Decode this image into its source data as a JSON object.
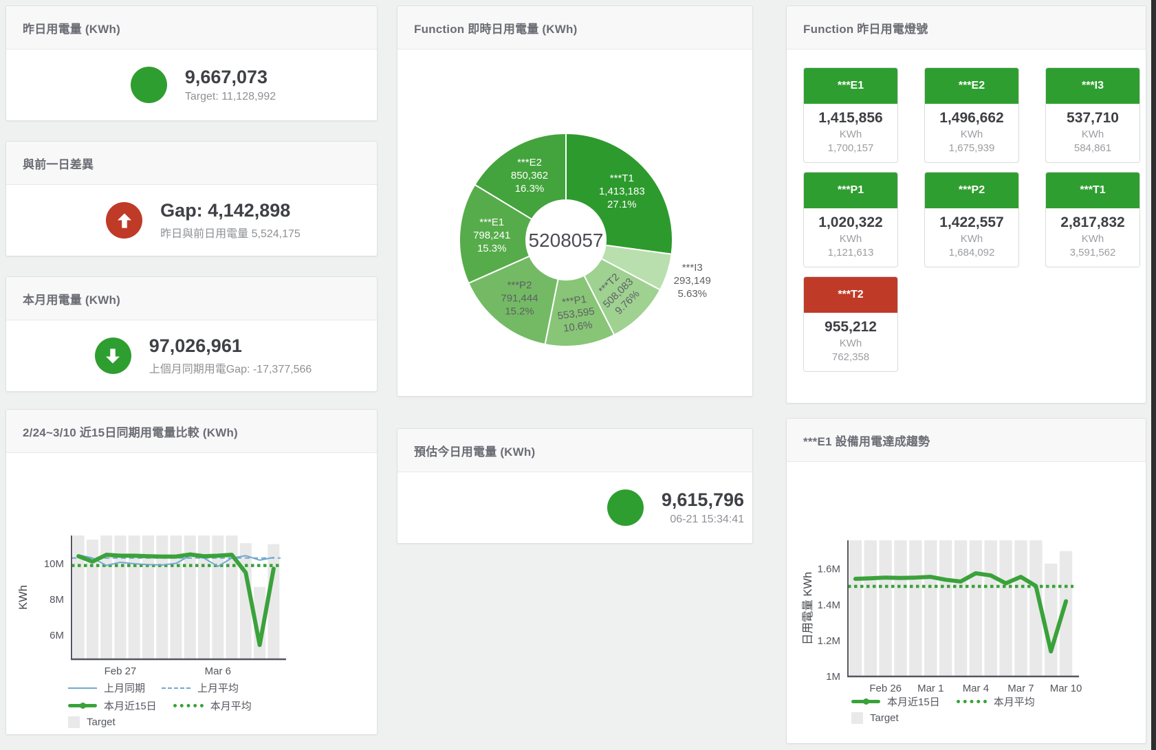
{
  "colors": {
    "green": "#2f9e30",
    "red": "#c03a28",
    "line_green": "#3aa23a",
    "line_blue": "#6fa8cf",
    "bar_gray": "#e9e9e9"
  },
  "cards": {
    "yesterday": {
      "title": "昨日用電量 (KWh)",
      "value": "9,667,073",
      "subtitle": "Target: 11,128,992"
    },
    "day_gap": {
      "title": "與前一日差異",
      "value": "Gap: 4,142,898",
      "subtitle": "昨日與前日用電量 5,524,175"
    },
    "month": {
      "title": "本月用電量 (KWh)",
      "value": "97,026,961",
      "subtitle": "上個月同期用電Gap: -17,377,566"
    },
    "estimate": {
      "title": "預估今日用電量 (KWh)",
      "value": "9,615,796",
      "subtitle": "06-21 15:34:41"
    },
    "realtime": {
      "title": "Function 即時日用電量 (KWh)"
    },
    "compare": {
      "title": "2/24~3/10 近15日同期用電量比較 (KWh)"
    },
    "trend": {
      "title": "***E1 設備用電達成趨勢"
    },
    "lights": {
      "title": "Function 昨日用電燈號",
      "unit": "KWh",
      "tiles": [
        {
          "label": "***E1",
          "value": "1,415,856",
          "target": "1,700,157",
          "status": "green"
        },
        {
          "label": "***E2",
          "value": "1,496,662",
          "target": "1,675,939",
          "status": "green"
        },
        {
          "label": "***I3",
          "value": "537,710",
          "target": "584,861",
          "status": "green"
        },
        {
          "label": "***P1",
          "value": "1,020,322",
          "target": "1,121,613",
          "status": "green"
        },
        {
          "label": "***P2",
          "value": "1,422,557",
          "target": "1,684,092",
          "status": "green"
        },
        {
          "label": "***T1",
          "value": "2,817,832",
          "target": "3,591,562",
          "status": "green"
        },
        {
          "label": "***T2",
          "value": "955,212",
          "target": "762,358",
          "status": "red"
        }
      ]
    }
  },
  "chart_data": [
    {
      "id": "realtime-donut",
      "type": "pie",
      "title": "Function 即時日用電量 (KWh)",
      "center_total": "5208057",
      "slices": [
        {
          "name": "***T1",
          "value": 1413183,
          "value_label": "1,413,183",
          "pct_label": "27.1%",
          "color": "#2d9a2d",
          "text": "#ffffff"
        },
        {
          "name": "***I3",
          "value": 293149,
          "value_label": "293,149",
          "pct_label": "5.63%",
          "color": "#badfae",
          "text": "#5d5f63",
          "outside": true
        },
        {
          "name": "***T2",
          "value": 508083,
          "value_label": "508,083",
          "pct_label": "9.76%",
          "color": "#9fd191",
          "text": "#5d5f63",
          "radial": true
        },
        {
          "name": "***P1",
          "value": 553595,
          "value_label": "553,595",
          "pct_label": "10.6%",
          "color": "#88c577",
          "text": "#5d5f63",
          "radial": true
        },
        {
          "name": "***P2",
          "value": 791444,
          "value_label": "791,444",
          "pct_label": "15.2%",
          "color": "#74ba65",
          "text": "#5d5f63"
        },
        {
          "name": "***E1",
          "value": 798241,
          "value_label": "798,241",
          "pct_label": "15.3%",
          "color": "#56ac4a",
          "text": "#ffffff"
        },
        {
          "name": "***E2",
          "value": 850362,
          "value_label": "850,362",
          "pct_label": "16.3%",
          "color": "#43a33c",
          "text": "#ffffff"
        }
      ]
    },
    {
      "id": "compare-15d",
      "type": "bar",
      "title": "2/24~3/10 近15日同期用電量比較 (KWh)",
      "ylabel": "KWh",
      "unit": "M KWh",
      "ylim": [
        4.65,
        11.58
      ],
      "yticks": [
        {
          "v": 6,
          "label": "6M"
        },
        {
          "v": 8,
          "label": "8M"
        },
        {
          "v": 10,
          "label": "10M"
        }
      ],
      "xticks": [
        {
          "i": 3,
          "label": "Feb 27"
        },
        {
          "i": 10,
          "label": "Mar 6"
        }
      ],
      "legend_position": "bottom-left",
      "grid": false,
      "series": [
        {
          "name": "Target",
          "kind": "bar",
          "color": "#e9e9e9",
          "values": [
            11.58,
            11.35,
            11.58,
            11.58,
            11.58,
            11.58,
            11.58,
            11.58,
            11.58,
            11.58,
            11.58,
            11.58,
            11.15,
            8.7,
            11.1
          ]
        },
        {
          "name": "上月同期",
          "kind": "line",
          "color": "#6fa8cf",
          "width": 2,
          "values": [
            10.5,
            10.32,
            9.9,
            10.08,
            10.0,
            9.95,
            9.93,
            10.02,
            10.45,
            10.32,
            9.85,
            10.32,
            10.45,
            10.2,
            10.35
          ]
        },
        {
          "name": "上月平均",
          "kind": "hline-dashed",
          "color": "#6fa8cf",
          "value": 10.32
        },
        {
          "name": "本月近15日",
          "kind": "line",
          "color": "#3aa23a",
          "width": 6,
          "values": [
            10.42,
            10.12,
            10.5,
            10.45,
            10.45,
            10.42,
            10.4,
            10.4,
            10.52,
            10.42,
            10.45,
            10.5,
            9.5,
            5.45,
            9.72
          ]
        },
        {
          "name": "本月平均",
          "kind": "hline-dotted",
          "color": "#3aa23a",
          "value": 9.9
        }
      ]
    },
    {
      "id": "e1-trend",
      "type": "bar",
      "title": "***E1 設備用電達成趨勢",
      "ylabel": "日用電量 KWh",
      "unit": "M KWh",
      "ylim": [
        1.0,
        1.76
      ],
      "yticks": [
        {
          "v": 1,
          "label": "1M"
        },
        {
          "v": 1.2,
          "label": "1.2M"
        },
        {
          "v": 1.4,
          "label": "1.4M"
        },
        {
          "v": 1.6,
          "label": "1.6M"
        }
      ],
      "xticks": [
        {
          "i": 2,
          "label": "Feb 26"
        },
        {
          "i": 5,
          "label": "Mar 1"
        },
        {
          "i": 8,
          "label": "Mar 4"
        },
        {
          "i": 11,
          "label": "Mar 7"
        },
        {
          "i": 14,
          "label": "Mar 10"
        }
      ],
      "legend_position": "bottom-left",
      "grid": false,
      "series": [
        {
          "name": "Target",
          "kind": "bar",
          "color": "#e9e9e9",
          "values": [
            1.76,
            1.76,
            1.76,
            1.76,
            1.76,
            1.76,
            1.76,
            1.76,
            1.76,
            1.76,
            1.76,
            1.76,
            1.76,
            1.63,
            1.7
          ]
        },
        {
          "name": "本月近15日",
          "kind": "line",
          "color": "#3aa23a",
          "width": 6,
          "values": [
            1.545,
            1.548,
            1.552,
            1.55,
            1.552,
            1.556,
            1.54,
            1.53,
            1.576,
            1.564,
            1.52,
            1.556,
            1.505,
            1.14,
            1.42
          ]
        },
        {
          "name": "本月平均",
          "kind": "hline-dotted",
          "color": "#3aa23a",
          "value": 1.503
        }
      ]
    }
  ]
}
